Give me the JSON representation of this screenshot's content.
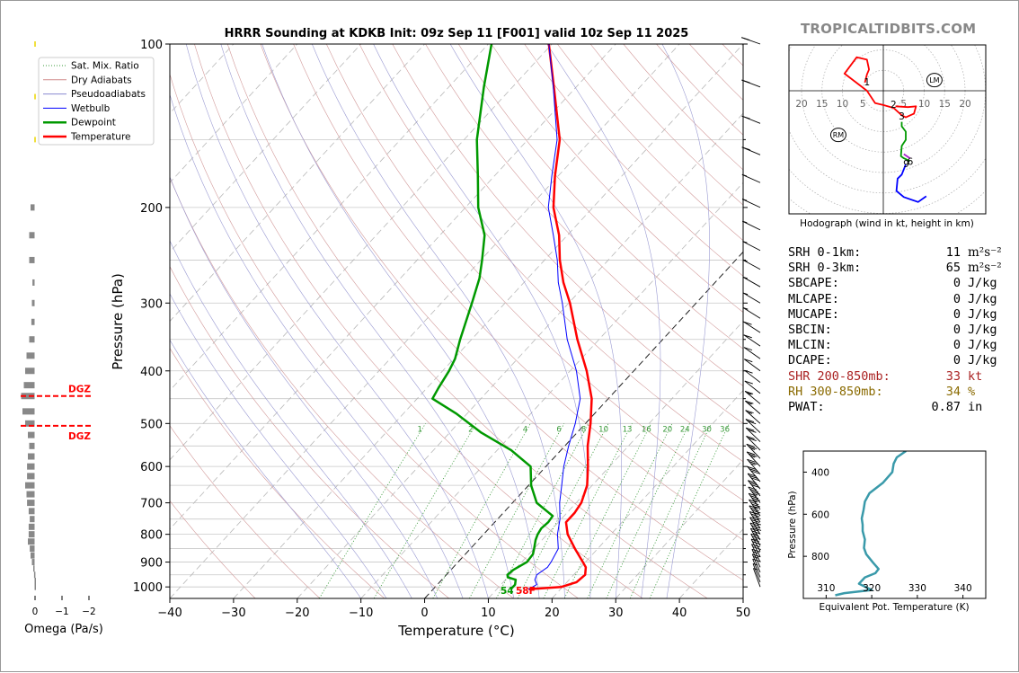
{
  "brand": "TROPICALTIDBITS.COM",
  "chart_data": {
    "type": "line",
    "title": "HRRR Sounding at KDKB Init: 09z Sep 11 [F001] valid 10z Sep 11 2025",
    "xlabel": "Temperature (°C)",
    "ylabel": "Pressure (hPa)",
    "xlim": [
      -40,
      50
    ],
    "ylim": [
      1050,
      100
    ],
    "yscale": "log",
    "x_ticks": [
      "−40",
      "−30",
      "−20",
      "−10",
      "0",
      "10",
      "20",
      "30",
      "40",
      "50"
    ],
    "y_ticks": [
      "100",
      "200",
      "300",
      "400",
      "500",
      "600",
      "700",
      "800",
      "900",
      "1000"
    ],
    "legend": {
      "placement": "top-left",
      "entries": [
        {
          "label": "Sat. Mix. Ratio",
          "color": "#3a9a3a",
          "style": "dotted"
        },
        {
          "label": "Dry Adiabats",
          "color": "#d08a8a",
          "style": "solid"
        },
        {
          "label": "Pseudoadiabats",
          "color": "#8a8ad0",
          "style": "solid"
        },
        {
          "label": "Wetbulb",
          "color": "#0000ff",
          "style": "solid"
        },
        {
          "label": "Dewpoint",
          "color": "#009900",
          "style": "solid"
        },
        {
          "label": "Temperature",
          "color": "#ff0000",
          "style": "solid"
        }
      ]
    },
    "mixing_ratio_labels": [
      "1",
      "2",
      "4",
      "6",
      "8",
      "10",
      "13",
      "16",
      "20",
      "24",
      "30",
      "36"
    ],
    "surface_labels": {
      "dewpoint": "54",
      "temperature": "58F"
    },
    "series": [
      {
        "name": "Temperature",
        "color": "#ff0000",
        "points": [
          [
            1010,
            15
          ],
          [
            1000,
            19.8
          ],
          [
            980,
            21.5
          ],
          [
            950,
            21.8
          ],
          [
            920,
            20.8
          ],
          [
            900,
            19.6
          ],
          [
            850,
            16.4
          ],
          [
            800,
            13.2
          ],
          [
            760,
            11.2
          ],
          [
            730,
            11.2
          ],
          [
            700,
            10.8
          ],
          [
            650,
            9.2
          ],
          [
            600,
            6.6
          ],
          [
            550,
            3.6
          ],
          [
            500,
            0.8
          ],
          [
            450,
            -2.6
          ],
          [
            400,
            -7.4
          ],
          [
            350,
            -13.4
          ],
          [
            300,
            -19.8
          ],
          [
            275,
            -23.8
          ],
          [
            250,
            -27.6
          ],
          [
            225,
            -31.3
          ],
          [
            200,
            -36.2
          ],
          [
            175,
            -40.5
          ],
          [
            150,
            -45
          ],
          [
            120,
            -53.5
          ],
          [
            100,
            -60.5
          ]
        ]
      },
      {
        "name": "Wetbulb",
        "color": "#0000ff",
        "points": [
          [
            1010,
            15
          ],
          [
            990,
            15.6
          ],
          [
            970,
            14.6
          ],
          [
            950,
            14.2
          ],
          [
            920,
            14.8
          ],
          [
            900,
            14.6
          ],
          [
            850,
            13.8
          ],
          [
            800,
            11.6
          ],
          [
            750,
            9.8
          ],
          [
            700,
            7.4
          ],
          [
            650,
            5.2
          ],
          [
            600,
            2.8
          ],
          [
            550,
            0.6
          ],
          [
            500,
            -1.6
          ],
          [
            450,
            -4.4
          ],
          [
            400,
            -9
          ],
          [
            350,
            -15
          ],
          [
            300,
            -21
          ],
          [
            275,
            -24.6
          ],
          [
            250,
            -28
          ],
          [
            225,
            -32.2
          ],
          [
            200,
            -37
          ],
          [
            175,
            -41
          ],
          [
            150,
            -45.4
          ],
          [
            120,
            -53.6
          ],
          [
            100,
            -60.5
          ]
        ]
      },
      {
        "name": "Dewpoint",
        "color": "#009900",
        "points": [
          [
            1010,
            12.2
          ],
          [
            990,
            12.2
          ],
          [
            970,
            11.6
          ],
          [
            960,
            10
          ],
          [
            950,
            9.6
          ],
          [
            930,
            9.8
          ],
          [
            900,
            10.8
          ],
          [
            870,
            10.6
          ],
          [
            850,
            10
          ],
          [
            820,
            9
          ],
          [
            800,
            8.5
          ],
          [
            780,
            8.2
          ],
          [
            760,
            8.4
          ],
          [
            740,
            8.2
          ],
          [
            700,
            3.8
          ],
          [
            650,
            0.4
          ],
          [
            600,
            -2.4
          ],
          [
            560,
            -7.8
          ],
          [
            520,
            -15
          ],
          [
            480,
            -21.6
          ],
          [
            450,
            -27.6
          ],
          [
            430,
            -28.2
          ],
          [
            400,
            -29
          ],
          [
            380,
            -29.8
          ],
          [
            350,
            -31.8
          ],
          [
            300,
            -35.2
          ],
          [
            270,
            -37.6
          ],
          [
            250,
            -39.8
          ],
          [
            225,
            -43
          ],
          [
            200,
            -48
          ],
          [
            175,
            -52.6
          ],
          [
            150,
            -58
          ],
          [
            120,
            -64.5
          ],
          [
            100,
            -69.5
          ]
        ]
      }
    ],
    "wind_barbs_speed_kt": [
      5,
      5,
      10,
      15,
      15,
      20,
      20,
      25,
      25,
      30,
      30,
      35,
      35,
      35,
      35,
      35,
      30,
      30,
      30,
      25,
      25,
      25,
      20,
      20,
      20,
      15,
      15,
      15,
      10,
      10,
      10,
      10,
      10,
      10,
      5,
      5,
      5,
      5,
      5,
      5,
      5,
      5,
      10,
      10,
      15,
      15
    ]
  },
  "omega": {
    "xlabel": "Omega (Pa/s)",
    "ticks": [
      "0",
      "−1",
      "−2"
    ],
    "dgz_label": "DGZ",
    "dgz_pressures": [
      445,
      505
    ],
    "values": [
      [
        200,
        0.15
      ],
      [
        225,
        0.2
      ],
      [
        250,
        0.2
      ],
      [
        275,
        0.08
      ],
      [
        300,
        0.1
      ],
      [
        325,
        0.12
      ],
      [
        350,
        0.2
      ],
      [
        375,
        0.3
      ],
      [
        400,
        0.35
      ],
      [
        425,
        0.4
      ],
      [
        445,
        0.5
      ],
      [
        475,
        0.45
      ],
      [
        500,
        0.35
      ],
      [
        525,
        0.25
      ],
      [
        550,
        0.2
      ],
      [
        575,
        0.25
      ],
      [
        600,
        0.28
      ],
      [
        625,
        0.28
      ],
      [
        650,
        0.35
      ],
      [
        675,
        0.3
      ],
      [
        700,
        0.28
      ],
      [
        725,
        0.22
      ],
      [
        750,
        0.18
      ],
      [
        775,
        0.22
      ],
      [
        800,
        0.22
      ],
      [
        825,
        0.25
      ],
      [
        850,
        0.18
      ],
      [
        875,
        0.15
      ],
      [
        900,
        0.1
      ],
      [
        925,
        0.05
      ],
      [
        950,
        0.02
      ],
      [
        975,
        -0.02
      ],
      [
        1000,
        0.0
      ]
    ]
  },
  "hodograph": {
    "caption": "Hodograph (wind in kt, height in km)",
    "ring_labels": [
      "20",
      "15",
      "10",
      "5",
      "5",
      "10",
      "15",
      "20"
    ],
    "height_labels": [
      {
        "text": "1",
        "u": -4,
        "v": 2.2
      },
      {
        "text": "2",
        "u": 2.5,
        "v": -3.3
      },
      {
        "text": "3",
        "u": 4.5,
        "v": -6.2
      },
      {
        "text": "9",
        "u": 5.6,
        "v": -17.8
      },
      {
        "text": "6",
        "u": 6.6,
        "v": -17.3
      }
    ],
    "markers": [
      {
        "text": "LM",
        "u": 12.5,
        "v": 2.6
      },
      {
        "text": "RM",
        "u": -11,
        "v": -10.8
      }
    ],
    "segments": [
      {
        "color": "#ff0000",
        "points": [
          [
            3,
            -3.8
          ],
          [
            6,
            -4
          ],
          [
            8,
            -3.8
          ],
          [
            7.5,
            -5.6
          ],
          [
            5.5,
            -6.5
          ],
          [
            4.5,
            -6
          ],
          [
            2.5,
            -4.2
          ],
          [
            0,
            -3.5
          ],
          [
            -2,
            -3
          ],
          [
            -4,
            0
          ],
          [
            -9.5,
            4.2
          ],
          [
            -6.5,
            8.2
          ],
          [
            -4,
            7.6
          ],
          [
            -3.5,
            5.2
          ],
          [
            -4,
            4
          ],
          [
            -4.5,
            2
          ]
        ]
      },
      {
        "color": "#009900",
        "points": [
          [
            4.5,
            -7.6
          ],
          [
            4.5,
            -8.7
          ],
          [
            5.5,
            -10
          ],
          [
            5.5,
            -12
          ],
          [
            4.5,
            -13.5
          ],
          [
            4.3,
            -16
          ],
          [
            5,
            -16.5
          ],
          [
            6.5,
            -17.2
          ]
        ]
      },
      {
        "color": "#aa22cc",
        "points": [
          [
            5,
            -15.5
          ],
          [
            6.5,
            -16.5
          ]
        ]
      },
      {
        "color": "#0000ff",
        "points": [
          [
            5.5,
            -18
          ],
          [
            4.5,
            -20.5
          ],
          [
            3.5,
            -21.5
          ],
          [
            3.2,
            -24.5
          ],
          [
            5,
            -26
          ],
          [
            8.5,
            -27.2
          ],
          [
            10.5,
            -25.8
          ]
        ]
      }
    ]
  },
  "params": [
    {
      "label": "SRH 0-1km:",
      "value": "11",
      "unit": "m²s⁻²",
      "color": "#000000"
    },
    {
      "label": "SRH 0-3km:",
      "value": "65",
      "unit": "m²s⁻²",
      "color": "#000000"
    },
    {
      "label": "SBCAPE:",
      "value": "0",
      "unit": "J/kg",
      "color": "#000000"
    },
    {
      "label": "MLCAPE:",
      "value": "0",
      "unit": "J/kg",
      "color": "#000000"
    },
    {
      "label": "MUCAPE:",
      "value": "0",
      "unit": "J/kg",
      "color": "#000000"
    },
    {
      "label": "SBCIN:",
      "value": "0",
      "unit": "J/kg",
      "color": "#000000"
    },
    {
      "label": "MLCIN:",
      "value": "0",
      "unit": "J/kg",
      "color": "#000000"
    },
    {
      "label": "DCAPE:",
      "value": "0",
      "unit": "J/kg",
      "color": "#000000"
    },
    {
      "label": "SHR 200-850mb:",
      "value": "33",
      "unit": "kt",
      "color": "#aa2222"
    },
    {
      "label": "RH 300-850mb:",
      "value": "34",
      "unit": "%",
      "color": "#8a6a00"
    },
    {
      "label": "PWAT:",
      "value": "0.87",
      "unit": "in",
      "color": "#000000"
    }
  ],
  "theta_e": {
    "xlabel": "Equivalent Pot. Temperature (K)",
    "ylabel": "Pressure (hPa)",
    "xlim": [
      305,
      345
    ],
    "ylim": [
      1000,
      300
    ],
    "x_ticks": [
      "310",
      "320",
      "330",
      "340"
    ],
    "y_ticks": [
      "400",
      "600",
      "800"
    ],
    "points": [
      [
        300,
        327.5
      ],
      [
        330,
        325.5
      ],
      [
        360,
        324.8
      ],
      [
        400,
        324.5
      ],
      [
        450,
        322.5
      ],
      [
        500,
        319.5
      ],
      [
        540,
        318.5
      ],
      [
        580,
        318.2
      ],
      [
        620,
        317.8
      ],
      [
        650,
        318
      ],
      [
        680,
        318
      ],
      [
        720,
        318.5
      ],
      [
        760,
        318.3
      ],
      [
        790,
        318.8
      ],
      [
        830,
        320.3
      ],
      [
        860,
        321.5
      ],
      [
        880,
        320.8
      ],
      [
        900,
        318.5
      ],
      [
        930,
        317.2
      ],
      [
        960,
        320
      ],
      [
        975,
        314
      ],
      [
        985,
        312
      ]
    ]
  }
}
